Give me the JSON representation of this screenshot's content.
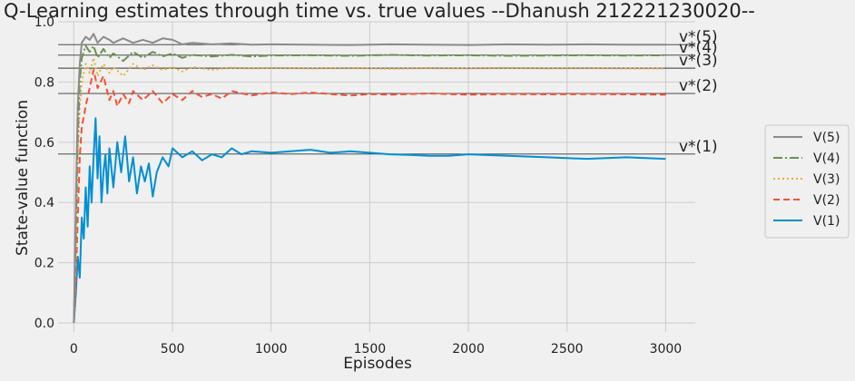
{
  "chart_data": {
    "type": "line",
    "title": "Q-Learning estimates through time vs. true values --Dhanush 212221230020--",
    "xlabel": "Episodes",
    "ylabel": "State-value function",
    "xlim": [
      -80,
      3150
    ],
    "ylim": [
      -0.03,
      1.0
    ],
    "xticks": [
      0,
      500,
      1000,
      1500,
      2000,
      2500,
      3000
    ],
    "yticks": [
      0.0,
      0.2,
      0.4,
      0.6,
      0.8,
      1.0
    ],
    "xtick_labels": [
      "0",
      "500",
      "1000",
      "1500",
      "2000",
      "2500",
      "3000"
    ],
    "ytick_labels": [
      "0.0",
      "0.2",
      "0.4",
      "0.6",
      "0.8",
      "1.0"
    ],
    "grid": true,
    "legend_position": "right",
    "reference_lines": [
      {
        "label": "v*(5)",
        "value": 0.924
      },
      {
        "label": "v*(4)",
        "value": 0.889
      },
      {
        "label": "v*(3)",
        "value": 0.846
      },
      {
        "label": "v*(2)",
        "value": 0.762
      },
      {
        "label": "v*(1)",
        "value": 0.561
      }
    ],
    "series": [
      {
        "name": "V(5)",
        "color": "#8b8b8b",
        "dash": "",
        "x": [
          0,
          10,
          20,
          30,
          40,
          60,
          80,
          100,
          120,
          150,
          180,
          200,
          250,
          300,
          350,
          400,
          450,
          500,
          550,
          600,
          700,
          800,
          900,
          1000,
          1200,
          1400,
          1600,
          1800,
          2000,
          2200,
          2400,
          2600,
          2800,
          3000
        ],
        "y": [
          0.0,
          0.4,
          0.72,
          0.86,
          0.93,
          0.95,
          0.94,
          0.96,
          0.93,
          0.95,
          0.94,
          0.93,
          0.945,
          0.93,
          0.94,
          0.93,
          0.945,
          0.94,
          0.925,
          0.93,
          0.925,
          0.928,
          0.924,
          0.925,
          0.924,
          0.923,
          0.925,
          0.924,
          0.923,
          0.925,
          0.924,
          0.925,
          0.924,
          0.924
        ]
      },
      {
        "name": "V(4)",
        "color": "#6d904f",
        "dash": "10,3,2,3",
        "x": [
          0,
          10,
          20,
          30,
          40,
          60,
          80,
          100,
          120,
          150,
          180,
          200,
          250,
          300,
          350,
          400,
          450,
          500,
          550,
          600,
          700,
          800,
          900,
          1000,
          1200,
          1400,
          1600,
          1800,
          2000,
          2200,
          2400,
          2600,
          2800,
          3000
        ],
        "y": [
          0.0,
          0.3,
          0.62,
          0.8,
          0.88,
          0.92,
          0.9,
          0.92,
          0.88,
          0.91,
          0.88,
          0.895,
          0.87,
          0.9,
          0.88,
          0.9,
          0.885,
          0.895,
          0.88,
          0.89,
          0.885,
          0.89,
          0.885,
          0.888,
          0.889,
          0.887,
          0.89,
          0.888,
          0.889,
          0.887,
          0.888,
          0.889,
          0.888,
          0.889
        ]
      },
      {
        "name": "V(3)",
        "color": "#e5ae38",
        "dash": "2,3",
        "x": [
          0,
          10,
          20,
          30,
          40,
          60,
          80,
          100,
          120,
          150,
          180,
          200,
          250,
          300,
          350,
          400,
          450,
          500,
          550,
          600,
          700,
          800,
          900,
          1000,
          1200,
          1400,
          1600,
          1800,
          2000,
          2200,
          2400,
          2600,
          2800,
          3000
        ],
        "y": [
          0.0,
          0.25,
          0.55,
          0.72,
          0.8,
          0.86,
          0.83,
          0.88,
          0.82,
          0.86,
          0.83,
          0.85,
          0.82,
          0.86,
          0.84,
          0.855,
          0.84,
          0.85,
          0.835,
          0.85,
          0.84,
          0.848,
          0.845,
          0.847,
          0.845,
          0.846,
          0.844,
          0.846,
          0.845,
          0.847,
          0.845,
          0.846,
          0.845,
          0.845
        ]
      },
      {
        "name": "V(2)",
        "color": "#fc4f30",
        "dash": "7,4",
        "x": [
          0,
          10,
          20,
          30,
          40,
          60,
          80,
          100,
          120,
          150,
          180,
          200,
          220,
          250,
          280,
          300,
          350,
          400,
          450,
          500,
          550,
          600,
          650,
          700,
          750,
          800,
          900,
          1000,
          1100,
          1200,
          1300,
          1400,
          1500,
          1600,
          1800,
          2000,
          2200,
          2400,
          2600,
          2800,
          3000
        ],
        "y": [
          0.0,
          0.15,
          0.35,
          0.55,
          0.65,
          0.72,
          0.78,
          0.84,
          0.78,
          0.82,
          0.74,
          0.77,
          0.72,
          0.76,
          0.73,
          0.77,
          0.74,
          0.77,
          0.73,
          0.76,
          0.74,
          0.77,
          0.75,
          0.76,
          0.745,
          0.77,
          0.755,
          0.765,
          0.76,
          0.765,
          0.76,
          0.755,
          0.76,
          0.758,
          0.762,
          0.758,
          0.76,
          0.759,
          0.76,
          0.759,
          0.758
        ]
      },
      {
        "name": "V(1)",
        "color": "#008fd5",
        "dash": "",
        "x": [
          0,
          10,
          20,
          30,
          40,
          50,
          60,
          70,
          80,
          90,
          100,
          110,
          120,
          130,
          140,
          150,
          160,
          170,
          180,
          200,
          220,
          240,
          260,
          280,
          300,
          320,
          340,
          360,
          380,
          400,
          420,
          450,
          480,
          500,
          550,
          600,
          650,
          700,
          750,
          800,
          850,
          900,
          1000,
          1100,
          1200,
          1300,
          1400,
          1500,
          1600,
          1700,
          1800,
          1900,
          2000,
          2200,
          2400,
          2600,
          2800,
          3000
        ],
        "y": [
          0.0,
          0.1,
          0.22,
          0.15,
          0.35,
          0.28,
          0.45,
          0.32,
          0.52,
          0.4,
          0.55,
          0.68,
          0.48,
          0.62,
          0.4,
          0.5,
          0.56,
          0.43,
          0.58,
          0.45,
          0.6,
          0.5,
          0.62,
          0.47,
          0.55,
          0.43,
          0.52,
          0.47,
          0.53,
          0.42,
          0.5,
          0.55,
          0.52,
          0.58,
          0.55,
          0.57,
          0.54,
          0.56,
          0.55,
          0.58,
          0.56,
          0.57,
          0.565,
          0.57,
          0.575,
          0.565,
          0.57,
          0.565,
          0.56,
          0.558,
          0.555,
          0.555,
          0.56,
          0.555,
          0.55,
          0.545,
          0.55,
          0.545
        ]
      }
    ]
  }
}
